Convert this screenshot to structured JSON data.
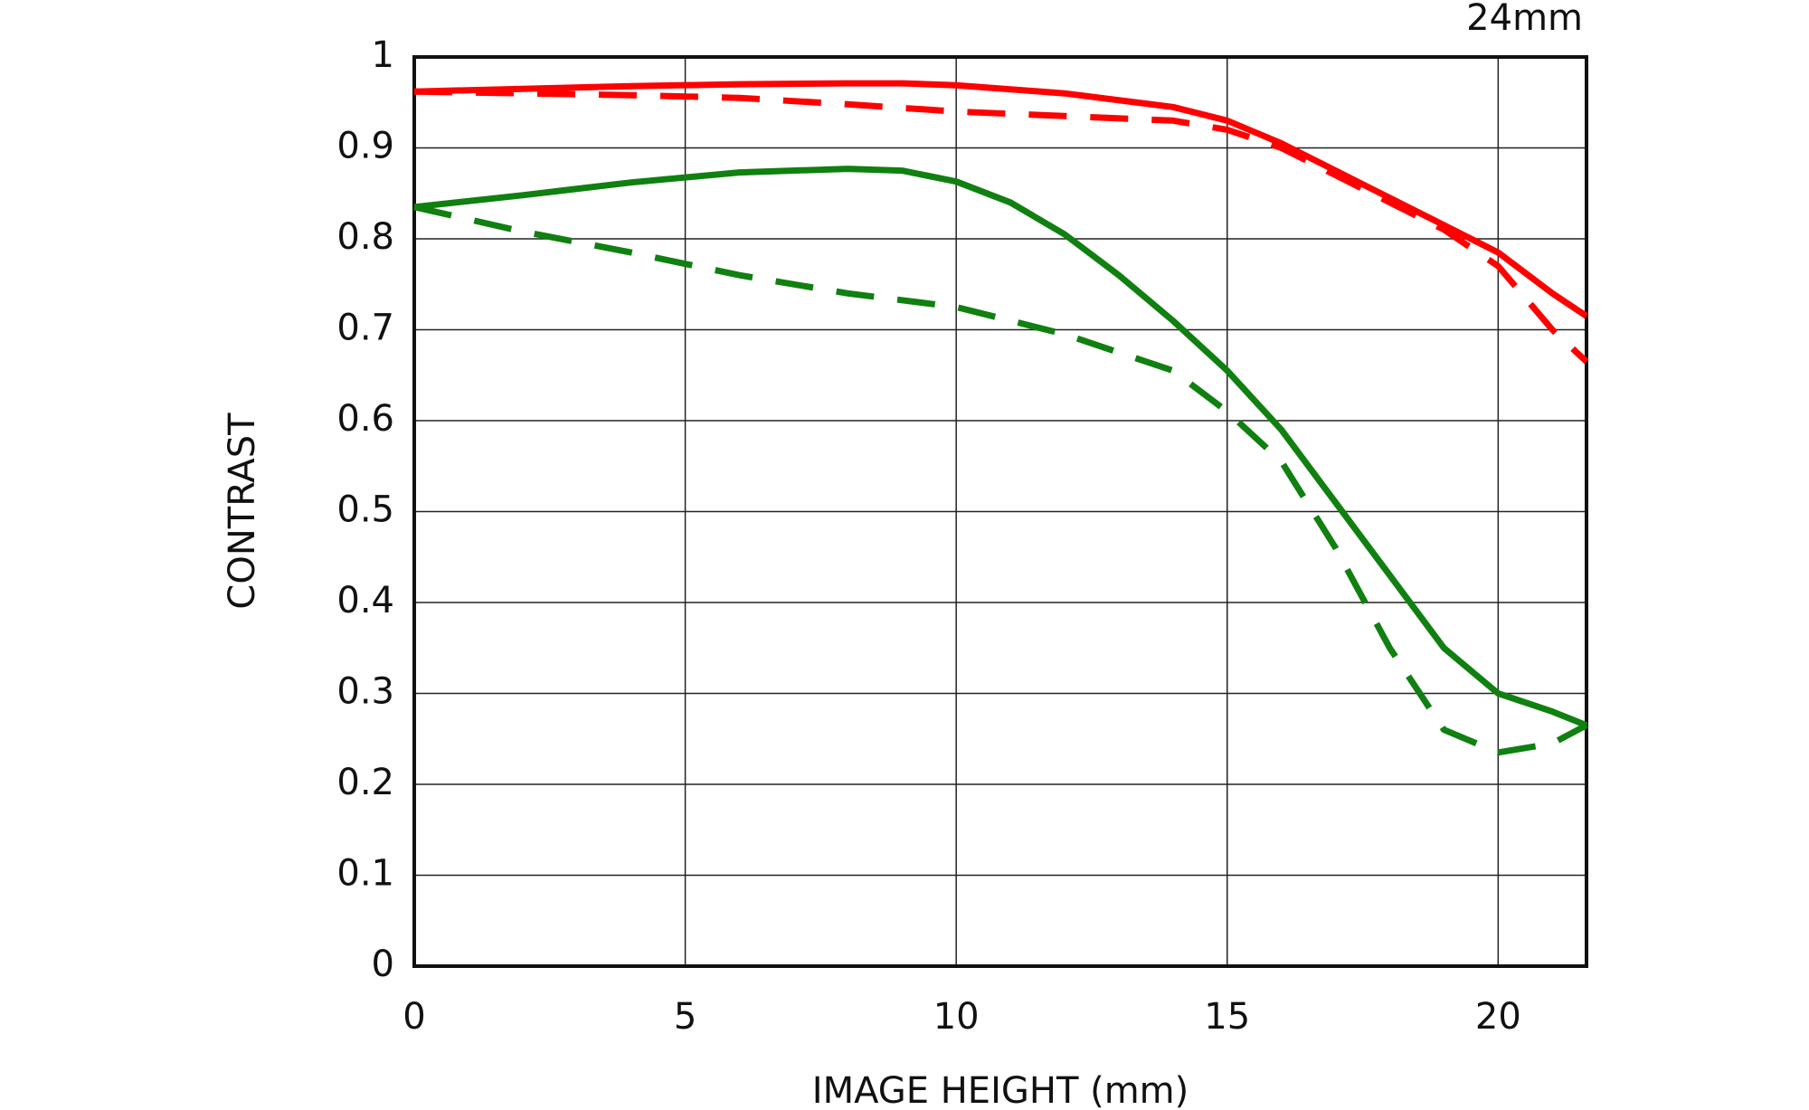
{
  "chart_data": {
    "type": "line",
    "title": "24mm",
    "xlabel": "IMAGE HEIGHT (mm)",
    "ylabel": "CONTRAST",
    "xlim": [
      0,
      21.63
    ],
    "ylim": [
      0,
      1
    ],
    "xticks": [
      0,
      5,
      10,
      15,
      20
    ],
    "yticks": [
      0,
      0.1,
      0.2,
      0.3,
      0.4,
      0.5,
      0.6,
      0.7,
      0.8,
      0.9,
      1
    ],
    "grid": true,
    "series": [
      {
        "color": "#ff0000",
        "dashed": false,
        "x": [
          0,
          2,
          4,
          6,
          8,
          9,
          10,
          12,
          14,
          15,
          16,
          17,
          18,
          19,
          20,
          21,
          21.63
        ],
        "values": [
          0.962,
          0.965,
          0.968,
          0.97,
          0.971,
          0.971,
          0.969,
          0.96,
          0.945,
          0.93,
          0.905,
          0.875,
          0.845,
          0.815,
          0.785,
          0.74,
          0.715
        ]
      },
      {
        "color": "#ff0000",
        "dashed": true,
        "x": [
          0,
          2,
          4,
          6,
          8,
          10,
          12,
          14,
          15,
          16,
          17,
          18,
          19,
          20,
          21,
          21.63
        ],
        "values": [
          0.962,
          0.96,
          0.958,
          0.955,
          0.948,
          0.94,
          0.935,
          0.93,
          0.92,
          0.9,
          0.87,
          0.84,
          0.81,
          0.77,
          0.7,
          0.665
        ]
      },
      {
        "color": "#108010",
        "dashed": false,
        "x": [
          0,
          2,
          4,
          6,
          8,
          9,
          10,
          11,
          12,
          13,
          14,
          15,
          16,
          17,
          18,
          19,
          20,
          21,
          21.63
        ],
        "values": [
          0.835,
          0.848,
          0.862,
          0.873,
          0.877,
          0.875,
          0.863,
          0.84,
          0.805,
          0.76,
          0.71,
          0.655,
          0.59,
          0.51,
          0.43,
          0.35,
          0.3,
          0.28,
          0.265
        ]
      },
      {
        "color": "#108010",
        "dashed": true,
        "x": [
          0,
          2,
          4,
          6,
          8,
          10,
          12,
          14,
          15,
          16,
          17,
          18,
          19,
          20,
          21,
          21.63
        ],
        "values": [
          0.835,
          0.808,
          0.785,
          0.76,
          0.74,
          0.725,
          0.695,
          0.655,
          0.61,
          0.555,
          0.46,
          0.35,
          0.26,
          0.235,
          0.245,
          0.265
        ]
      }
    ]
  }
}
